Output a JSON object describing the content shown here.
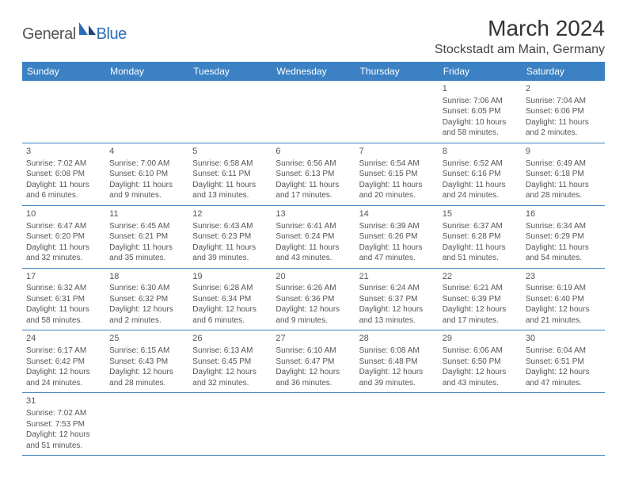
{
  "logo": {
    "general": "General",
    "blue": "Blue"
  },
  "title": "March 2024",
  "location": "Stockstadt am Main, Germany",
  "colors": {
    "header_bg": "#3b81c3",
    "header_text": "#ffffff",
    "row_border": "#3b81c3",
    "body_text": "#555555",
    "title_text": "#333333",
    "logo_blue": "#2a6db5",
    "logo_dark": "#1b4478"
  },
  "day_headers": [
    "Sunday",
    "Monday",
    "Tuesday",
    "Wednesday",
    "Thursday",
    "Friday",
    "Saturday"
  ],
  "weeks": [
    [
      null,
      null,
      null,
      null,
      null,
      {
        "n": "1",
        "sr": "Sunrise: 7:06 AM",
        "ss": "Sunset: 6:05 PM",
        "d1": "Daylight: 10 hours",
        "d2": "and 58 minutes."
      },
      {
        "n": "2",
        "sr": "Sunrise: 7:04 AM",
        "ss": "Sunset: 6:06 PM",
        "d1": "Daylight: 11 hours",
        "d2": "and 2 minutes."
      }
    ],
    [
      {
        "n": "3",
        "sr": "Sunrise: 7:02 AM",
        "ss": "Sunset: 6:08 PM",
        "d1": "Daylight: 11 hours",
        "d2": "and 6 minutes."
      },
      {
        "n": "4",
        "sr": "Sunrise: 7:00 AM",
        "ss": "Sunset: 6:10 PM",
        "d1": "Daylight: 11 hours",
        "d2": "and 9 minutes."
      },
      {
        "n": "5",
        "sr": "Sunrise: 6:58 AM",
        "ss": "Sunset: 6:11 PM",
        "d1": "Daylight: 11 hours",
        "d2": "and 13 minutes."
      },
      {
        "n": "6",
        "sr": "Sunrise: 6:56 AM",
        "ss": "Sunset: 6:13 PM",
        "d1": "Daylight: 11 hours",
        "d2": "and 17 minutes."
      },
      {
        "n": "7",
        "sr": "Sunrise: 6:54 AM",
        "ss": "Sunset: 6:15 PM",
        "d1": "Daylight: 11 hours",
        "d2": "and 20 minutes."
      },
      {
        "n": "8",
        "sr": "Sunrise: 6:52 AM",
        "ss": "Sunset: 6:16 PM",
        "d1": "Daylight: 11 hours",
        "d2": "and 24 minutes."
      },
      {
        "n": "9",
        "sr": "Sunrise: 6:49 AM",
        "ss": "Sunset: 6:18 PM",
        "d1": "Daylight: 11 hours",
        "d2": "and 28 minutes."
      }
    ],
    [
      {
        "n": "10",
        "sr": "Sunrise: 6:47 AM",
        "ss": "Sunset: 6:20 PM",
        "d1": "Daylight: 11 hours",
        "d2": "and 32 minutes."
      },
      {
        "n": "11",
        "sr": "Sunrise: 6:45 AM",
        "ss": "Sunset: 6:21 PM",
        "d1": "Daylight: 11 hours",
        "d2": "and 35 minutes."
      },
      {
        "n": "12",
        "sr": "Sunrise: 6:43 AM",
        "ss": "Sunset: 6:23 PM",
        "d1": "Daylight: 11 hours",
        "d2": "and 39 minutes."
      },
      {
        "n": "13",
        "sr": "Sunrise: 6:41 AM",
        "ss": "Sunset: 6:24 PM",
        "d1": "Daylight: 11 hours",
        "d2": "and 43 minutes."
      },
      {
        "n": "14",
        "sr": "Sunrise: 6:39 AM",
        "ss": "Sunset: 6:26 PM",
        "d1": "Daylight: 11 hours",
        "d2": "and 47 minutes."
      },
      {
        "n": "15",
        "sr": "Sunrise: 6:37 AM",
        "ss": "Sunset: 6:28 PM",
        "d1": "Daylight: 11 hours",
        "d2": "and 51 minutes."
      },
      {
        "n": "16",
        "sr": "Sunrise: 6:34 AM",
        "ss": "Sunset: 6:29 PM",
        "d1": "Daylight: 11 hours",
        "d2": "and 54 minutes."
      }
    ],
    [
      {
        "n": "17",
        "sr": "Sunrise: 6:32 AM",
        "ss": "Sunset: 6:31 PM",
        "d1": "Daylight: 11 hours",
        "d2": "and 58 minutes."
      },
      {
        "n": "18",
        "sr": "Sunrise: 6:30 AM",
        "ss": "Sunset: 6:32 PM",
        "d1": "Daylight: 12 hours",
        "d2": "and 2 minutes."
      },
      {
        "n": "19",
        "sr": "Sunrise: 6:28 AM",
        "ss": "Sunset: 6:34 PM",
        "d1": "Daylight: 12 hours",
        "d2": "and 6 minutes."
      },
      {
        "n": "20",
        "sr": "Sunrise: 6:26 AM",
        "ss": "Sunset: 6:36 PM",
        "d1": "Daylight: 12 hours",
        "d2": "and 9 minutes."
      },
      {
        "n": "21",
        "sr": "Sunrise: 6:24 AM",
        "ss": "Sunset: 6:37 PM",
        "d1": "Daylight: 12 hours",
        "d2": "and 13 minutes."
      },
      {
        "n": "22",
        "sr": "Sunrise: 6:21 AM",
        "ss": "Sunset: 6:39 PM",
        "d1": "Daylight: 12 hours",
        "d2": "and 17 minutes."
      },
      {
        "n": "23",
        "sr": "Sunrise: 6:19 AM",
        "ss": "Sunset: 6:40 PM",
        "d1": "Daylight: 12 hours",
        "d2": "and 21 minutes."
      }
    ],
    [
      {
        "n": "24",
        "sr": "Sunrise: 6:17 AM",
        "ss": "Sunset: 6:42 PM",
        "d1": "Daylight: 12 hours",
        "d2": "and 24 minutes."
      },
      {
        "n": "25",
        "sr": "Sunrise: 6:15 AM",
        "ss": "Sunset: 6:43 PM",
        "d1": "Daylight: 12 hours",
        "d2": "and 28 minutes."
      },
      {
        "n": "26",
        "sr": "Sunrise: 6:13 AM",
        "ss": "Sunset: 6:45 PM",
        "d1": "Daylight: 12 hours",
        "d2": "and 32 minutes."
      },
      {
        "n": "27",
        "sr": "Sunrise: 6:10 AM",
        "ss": "Sunset: 6:47 PM",
        "d1": "Daylight: 12 hours",
        "d2": "and 36 minutes."
      },
      {
        "n": "28",
        "sr": "Sunrise: 6:08 AM",
        "ss": "Sunset: 6:48 PM",
        "d1": "Daylight: 12 hours",
        "d2": "and 39 minutes."
      },
      {
        "n": "29",
        "sr": "Sunrise: 6:06 AM",
        "ss": "Sunset: 6:50 PM",
        "d1": "Daylight: 12 hours",
        "d2": "and 43 minutes."
      },
      {
        "n": "30",
        "sr": "Sunrise: 6:04 AM",
        "ss": "Sunset: 6:51 PM",
        "d1": "Daylight: 12 hours",
        "d2": "and 47 minutes."
      }
    ],
    [
      {
        "n": "31",
        "sr": "Sunrise: 7:02 AM",
        "ss": "Sunset: 7:53 PM",
        "d1": "Daylight: 12 hours",
        "d2": "and 51 minutes."
      },
      null,
      null,
      null,
      null,
      null,
      null
    ]
  ]
}
